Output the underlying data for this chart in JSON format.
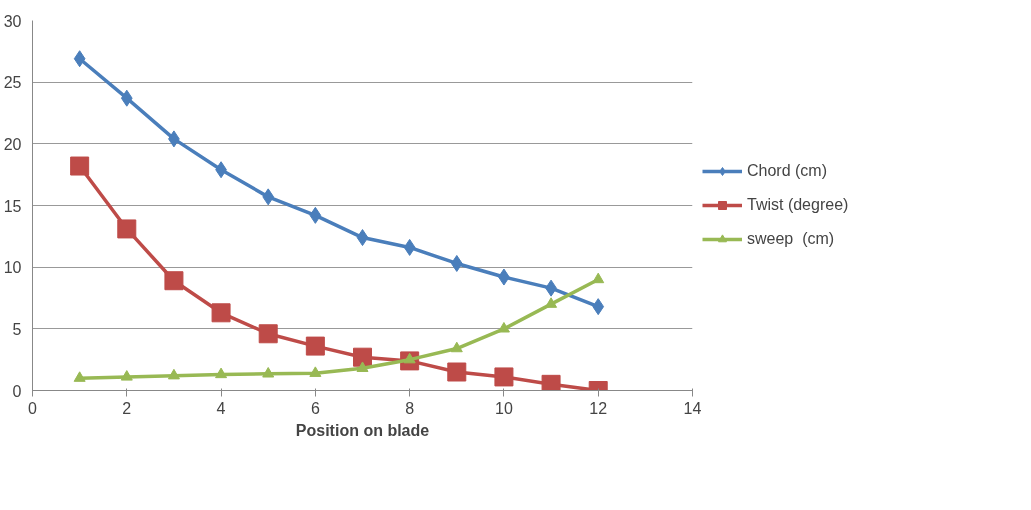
{
  "chart_data": {
    "type": "line",
    "xlabel": "Position on blade",
    "x": [
      1,
      2,
      3,
      4,
      5,
      6,
      7,
      8,
      9,
      10,
      11,
      12
    ],
    "series": [
      {
        "name": "Chord (cm)",
        "color": "#4a7ebb",
        "marker": "diamond",
        "values": [
          26.9,
          23.7,
          20.4,
          17.9,
          15.7,
          14.2,
          12.4,
          11.6,
          10.3,
          9.2,
          8.3,
          6.8
        ]
      },
      {
        "name": "Twist (degree)",
        "color": "#be4b48",
        "marker": "square",
        "values": [
          18.2,
          13.1,
          8.9,
          6.3,
          4.6,
          3.6,
          2.7,
          2.4,
          1.5,
          1.1,
          0.5,
          0.0
        ]
      },
      {
        "name": "sweep  (cm)",
        "color": "#98b954",
        "marker": "triangle",
        "values": [
          1.0,
          1.1,
          1.2,
          1.3,
          1.35,
          1.4,
          1.8,
          2.5,
          3.4,
          5.0,
          7.0,
          9.0
        ]
      }
    ],
    "xlim": [
      0,
      14
    ],
    "xticks": [
      0,
      2,
      4,
      6,
      8,
      10,
      12,
      14
    ],
    "ylim": [
      0,
      30
    ],
    "yticks": [
      0,
      5,
      10,
      15,
      20,
      25,
      30
    ],
    "grid": "y",
    "legend": "right",
    "line_style": "solid"
  }
}
